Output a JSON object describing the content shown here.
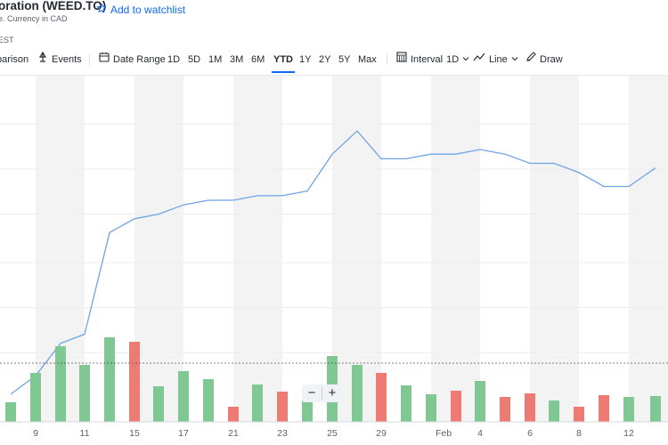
{
  "header": {
    "title": "oration (WEED.TO)",
    "subtitle": "e. Currency in CAD",
    "timezone": "EST",
    "watchlist_label": "Add to watchlist",
    "watchlist_icon": "star-outline-icon"
  },
  "toolbar": {
    "comparison_label": "parison",
    "events_label": "Events",
    "date_range_label": "Date Range",
    "ranges": [
      "1D",
      "5D",
      "1M",
      "3M",
      "6M",
      "YTD",
      "1Y",
      "2Y",
      "5Y",
      "Max"
    ],
    "active_range": "YTD",
    "interval_label": "Interval",
    "interval_value": "1D",
    "chart_type_label": "Line",
    "draw_label": "Draw"
  },
  "colors": {
    "line": "#6fa3e6",
    "volume_up": "#7fc894",
    "volume_down": "#ee7a74",
    "band": "#f3f3f3",
    "active_tab": "#0f69ff"
  },
  "zoom": {
    "minus": "−",
    "plus": "+"
  },
  "chart_data": {
    "type": "line",
    "x_ticks": [
      "9",
      "11",
      "15",
      "17",
      "21",
      "23",
      "25",
      "29",
      "Feb",
      "4",
      "6",
      "8",
      "12"
    ],
    "price_series": {
      "x": [
        "Jan 8",
        "Jan 9",
        "Jan 10",
        "Jan 11",
        "Jan 12",
        "Jan 15",
        "Jan 16",
        "Jan 17",
        "Jan 18",
        "Jan 19",
        "Jan 22",
        "Jan 23",
        "Jan 24",
        "Jan 25",
        "Jan 26",
        "Jan 29",
        "Jan 30",
        "Jan 31",
        "Feb 1",
        "Feb 2",
        "Feb 5",
        "Feb 6",
        "Feb 7",
        "Feb 8",
        "Feb 9",
        "Feb 12",
        "Feb 13"
      ],
      "y": [
        0.06,
        0.1,
        0.17,
        0.19,
        0.41,
        0.44,
        0.45,
        0.47,
        0.48,
        0.48,
        0.49,
        0.49,
        0.5,
        0.58,
        0.63,
        0.57,
        0.57,
        0.58,
        0.58,
        0.59,
        0.58,
        0.56,
        0.56,
        0.54,
        0.51,
        0.51,
        0.55
      ]
    },
    "volume_series": {
      "values": [
        0.22,
        0.55,
        0.85,
        0.64,
        0.95,
        0.9,
        0.4,
        0.57,
        0.48,
        0.17,
        0.42,
        0.34,
        0.25,
        0.74,
        0.64,
        0.55,
        0.41,
        0.31,
        0.35,
        0.46,
        0.28,
        0.32,
        0.24,
        0.17,
        0.3,
        0.28,
        0.29
      ],
      "direction": [
        "up",
        "up",
        "up",
        "up",
        "up",
        "down",
        "up",
        "up",
        "up",
        "down",
        "up",
        "down",
        "up",
        "up",
        "up",
        "down",
        "up",
        "up",
        "down",
        "up",
        "down",
        "down",
        "up",
        "down",
        "down",
        "up",
        "up"
      ]
    },
    "reference_line": "dashed horizontal line in volume area"
  }
}
